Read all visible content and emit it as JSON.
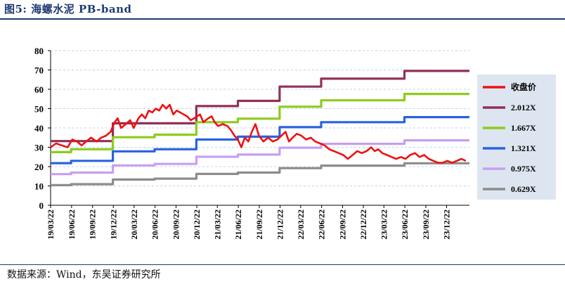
{
  "figure": {
    "title": "图5:  海螺水泥 PB-band",
    "source": "数据来源：Wind，东吴证券研究所"
  },
  "chart_data": {
    "type": "line",
    "ylim": [
      0,
      80
    ],
    "yticks": [
      0,
      10,
      20,
      30,
      40,
      50,
      60,
      70,
      80
    ],
    "x_range": [
      "2019-03-22",
      "2024-03-31"
    ],
    "xticks": [
      "19/03/22",
      "19/06/22",
      "19/09/22",
      "19/12/22",
      "20/03/22",
      "20/06/22",
      "20/09/22",
      "20/12/22",
      "21/03/22",
      "21/06/22",
      "21/09/22",
      "21/12/22",
      "22/03/22",
      "22/06/22",
      "22/09/22",
      "22/12/22",
      "23/03/22",
      "23/06/22",
      "23/09/22",
      "23/12/22"
    ],
    "grid": true,
    "legend_position": "right",
    "series": [
      {
        "name": "收盘价",
        "color": "#ee1111",
        "points": [
          [
            "2019-03-22",
            30
          ],
          [
            "2019-04-15",
            32
          ],
          [
            "2019-05-10",
            31
          ],
          [
            "2019-06-05",
            30
          ],
          [
            "2019-06-25",
            34
          ],
          [
            "2019-07-15",
            33
          ],
          [
            "2019-08-05",
            31
          ],
          [
            "2019-08-25",
            33
          ],
          [
            "2019-09-15",
            35
          ],
          [
            "2019-10-10",
            33
          ],
          [
            "2019-10-30",
            35
          ],
          [
            "2019-11-20",
            36
          ],
          [
            "2019-12-10",
            38
          ],
          [
            "2019-12-28",
            43
          ],
          [
            "2020-01-10",
            45
          ],
          [
            "2020-01-25",
            40
          ],
          [
            "2020-02-15",
            42
          ],
          [
            "2020-03-05",
            44
          ],
          [
            "2020-03-20",
            40
          ],
          [
            "2020-04-10",
            45
          ],
          [
            "2020-04-25",
            47
          ],
          [
            "2020-05-10",
            45
          ],
          [
            "2020-05-25",
            49
          ],
          [
            "2020-06-10",
            48
          ],
          [
            "2020-06-25",
            50
          ],
          [
            "2020-07-10",
            49
          ],
          [
            "2020-07-25",
            52
          ],
          [
            "2020-08-10",
            50
          ],
          [
            "2020-08-25",
            52
          ],
          [
            "2020-09-10",
            47
          ],
          [
            "2020-09-25",
            49
          ],
          [
            "2020-10-10",
            48
          ],
          [
            "2020-10-25",
            47
          ],
          [
            "2020-11-10",
            46
          ],
          [
            "2020-11-25",
            44
          ],
          [
            "2020-12-10",
            45
          ],
          [
            "2021-01-05",
            47
          ],
          [
            "2021-01-20",
            43
          ],
          [
            "2021-02-10",
            45
          ],
          [
            "2021-02-25",
            46
          ],
          [
            "2021-03-10",
            43
          ],
          [
            "2021-03-25",
            41
          ],
          [
            "2021-04-15",
            42
          ],
          [
            "2021-05-05",
            41
          ],
          [
            "2021-05-20",
            39
          ],
          [
            "2021-06-05",
            36
          ],
          [
            "2021-06-20",
            34
          ],
          [
            "2021-07-05",
            30
          ],
          [
            "2021-07-20",
            35
          ],
          [
            "2021-08-05",
            33
          ],
          [
            "2021-08-20",
            38
          ],
          [
            "2021-09-05",
            42
          ],
          [
            "2021-09-20",
            36
          ],
          [
            "2021-10-10",
            33
          ],
          [
            "2021-10-30",
            35
          ],
          [
            "2021-11-20",
            33
          ],
          [
            "2021-12-10",
            34
          ],
          [
            "2021-12-28",
            36
          ],
          [
            "2022-01-15",
            38
          ],
          [
            "2022-01-30",
            33
          ],
          [
            "2022-02-15",
            35
          ],
          [
            "2022-03-05",
            37
          ],
          [
            "2022-03-25",
            36
          ],
          [
            "2022-04-15",
            34
          ],
          [
            "2022-05-05",
            35
          ],
          [
            "2022-05-25",
            33
          ],
          [
            "2022-06-15",
            32
          ],
          [
            "2022-07-05",
            31
          ],
          [
            "2022-07-25",
            29
          ],
          [
            "2022-08-15",
            28
          ],
          [
            "2022-09-05",
            27
          ],
          [
            "2022-09-25",
            26
          ],
          [
            "2022-10-15",
            24
          ],
          [
            "2022-11-05",
            26
          ],
          [
            "2022-11-25",
            28
          ],
          [
            "2022-12-15",
            27
          ],
          [
            "2023-01-05",
            28
          ],
          [
            "2023-01-25",
            30
          ],
          [
            "2023-02-10",
            28
          ],
          [
            "2023-02-25",
            29
          ],
          [
            "2023-03-15",
            27
          ],
          [
            "2023-04-05",
            26
          ],
          [
            "2023-04-25",
            25
          ],
          [
            "2023-05-15",
            24
          ],
          [
            "2023-06-05",
            25
          ],
          [
            "2023-06-25",
            24
          ],
          [
            "2023-07-15",
            26
          ],
          [
            "2023-08-05",
            27
          ],
          [
            "2023-08-25",
            25
          ],
          [
            "2023-09-15",
            26
          ],
          [
            "2023-10-05",
            24
          ],
          [
            "2023-10-25",
            23
          ],
          [
            "2023-11-15",
            22
          ],
          [
            "2023-12-05",
            22
          ],
          [
            "2023-12-25",
            23
          ],
          [
            "2024-01-15",
            22
          ],
          [
            "2024-02-05",
            23
          ],
          [
            "2024-02-25",
            24
          ],
          [
            "2024-03-15",
            23
          ]
        ]
      },
      {
        "name": "2.012X",
        "color": "#913059",
        "points": [
          [
            "2019-03-22",
            33.2
          ],
          [
            "2019-12-20",
            33.2
          ],
          [
            "2019-12-20",
            42.4
          ],
          [
            "2020-12-20",
            42.4
          ],
          [
            "2020-12-20",
            51.3
          ],
          [
            "2021-06-20",
            51.3
          ],
          [
            "2021-06-20",
            54.0
          ],
          [
            "2021-12-20",
            54.0
          ],
          [
            "2021-12-20",
            61.4
          ],
          [
            "2022-06-20",
            61.4
          ],
          [
            "2022-06-20",
            65.5
          ],
          [
            "2023-06-20",
            65.5
          ],
          [
            "2023-06-20",
            69.5
          ],
          [
            "2024-03-31",
            69.5
          ]
        ]
      },
      {
        "name": "1.667X",
        "color": "#8ccc1a",
        "points": [
          [
            "2019-03-22",
            27.5
          ],
          [
            "2019-06-20",
            27.5
          ],
          [
            "2019-06-20",
            29.0
          ],
          [
            "2019-12-20",
            29.0
          ],
          [
            "2019-12-20",
            35.2
          ],
          [
            "2020-06-20",
            35.2
          ],
          [
            "2020-06-20",
            36.5
          ],
          [
            "2020-12-20",
            36.5
          ],
          [
            "2020-12-20",
            43.0
          ],
          [
            "2021-06-20",
            43.0
          ],
          [
            "2021-06-20",
            44.8
          ],
          [
            "2021-12-20",
            44.8
          ],
          [
            "2021-12-20",
            51.0
          ],
          [
            "2022-06-20",
            51.0
          ],
          [
            "2022-06-20",
            54.3
          ],
          [
            "2023-06-20",
            54.3
          ],
          [
            "2023-06-20",
            57.6
          ],
          [
            "2024-03-31",
            57.6
          ]
        ]
      },
      {
        "name": "1.321X",
        "color": "#2a62e0",
        "points": [
          [
            "2019-03-22",
            21.8
          ],
          [
            "2019-06-20",
            21.8
          ],
          [
            "2019-06-20",
            23.0
          ],
          [
            "2019-12-20",
            23.0
          ],
          [
            "2019-12-20",
            27.9
          ],
          [
            "2020-06-20",
            27.9
          ],
          [
            "2020-06-20",
            29.0
          ],
          [
            "2020-12-20",
            29.0
          ],
          [
            "2020-12-20",
            34.0
          ],
          [
            "2021-06-20",
            34.0
          ],
          [
            "2021-06-20",
            35.5
          ],
          [
            "2021-12-20",
            35.5
          ],
          [
            "2021-12-20",
            40.4
          ],
          [
            "2022-06-20",
            40.4
          ],
          [
            "2022-06-20",
            43.0
          ],
          [
            "2023-06-20",
            43.0
          ],
          [
            "2023-06-20",
            45.6
          ],
          [
            "2024-03-31",
            45.6
          ]
        ]
      },
      {
        "name": "0.975X",
        "color": "#c79ff0",
        "points": [
          [
            "2019-03-22",
            16.1
          ],
          [
            "2019-06-20",
            16.1
          ],
          [
            "2019-06-20",
            16.9
          ],
          [
            "2019-12-20",
            16.9
          ],
          [
            "2019-12-20",
            20.6
          ],
          [
            "2020-06-20",
            20.6
          ],
          [
            "2020-06-20",
            21.4
          ],
          [
            "2020-12-20",
            21.4
          ],
          [
            "2020-12-20",
            25.1
          ],
          [
            "2021-06-20",
            25.1
          ],
          [
            "2021-06-20",
            26.2
          ],
          [
            "2021-12-20",
            26.2
          ],
          [
            "2021-12-20",
            29.8
          ],
          [
            "2022-06-20",
            29.8
          ],
          [
            "2022-06-20",
            31.8
          ],
          [
            "2023-06-20",
            31.8
          ],
          [
            "2023-06-20",
            33.6
          ],
          [
            "2024-03-31",
            33.6
          ]
        ]
      },
      {
        "name": "0.629X",
        "color": "#8c8c8c",
        "points": [
          [
            "2019-03-22",
            10.4
          ],
          [
            "2019-06-20",
            10.4
          ],
          [
            "2019-06-20",
            10.9
          ],
          [
            "2019-12-20",
            10.9
          ],
          [
            "2019-12-20",
            13.3
          ],
          [
            "2020-06-20",
            13.3
          ],
          [
            "2020-06-20",
            13.8
          ],
          [
            "2020-12-20",
            13.8
          ],
          [
            "2020-12-20",
            16.2
          ],
          [
            "2021-06-20",
            16.2
          ],
          [
            "2021-06-20",
            16.9
          ],
          [
            "2021-12-20",
            16.9
          ],
          [
            "2021-12-20",
            19.2
          ],
          [
            "2022-06-20",
            19.2
          ],
          [
            "2022-06-20",
            20.5
          ],
          [
            "2023-06-20",
            20.5
          ],
          [
            "2023-06-20",
            21.7
          ],
          [
            "2024-03-31",
            21.7
          ]
        ]
      }
    ]
  }
}
